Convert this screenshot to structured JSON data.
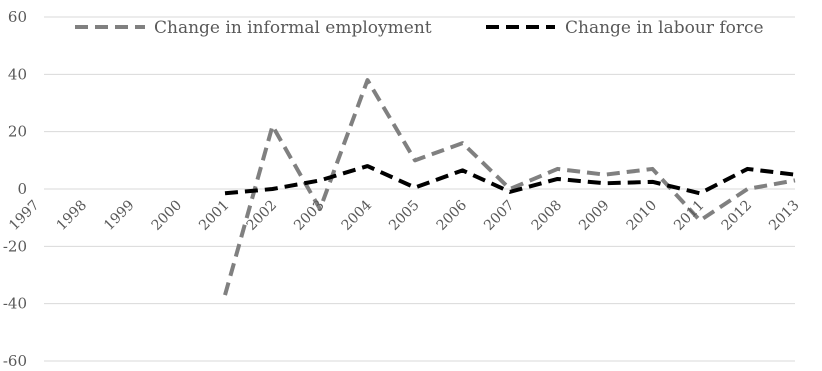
{
  "chart_data": {
    "type": "line",
    "title": "",
    "xlabel": "",
    "ylabel": "",
    "categories": [
      "1997",
      "1998",
      "1999",
      "2000",
      "2001",
      "2002",
      "2003",
      "2004",
      "2005",
      "2006",
      "2007",
      "2008",
      "2009",
      "2010",
      "2011",
      "2012",
      "2013"
    ],
    "ylim": [
      -60,
      60
    ],
    "yticks": [
      -60,
      -40,
      -20,
      0,
      20,
      40,
      60
    ],
    "grid": true,
    "legend_position": "top",
    "series": [
      {
        "name": "Change in informal employment",
        "color": "#808080",
        "dash": "dashed",
        "values": [
          null,
          null,
          null,
          null,
          -37,
          22,
          -7,
          38,
          10,
          16,
          0,
          7,
          5,
          7,
          -11,
          0,
          3
        ]
      },
      {
        "name": "Change in labour force",
        "color": "#000000",
        "dash": "dashed",
        "values": [
          null,
          null,
          null,
          null,
          -1.5,
          0,
          3,
          8,
          0.5,
          6.5,
          -1,
          3.5,
          2,
          2.5,
          -1.5,
          7,
          5
        ]
      }
    ]
  }
}
